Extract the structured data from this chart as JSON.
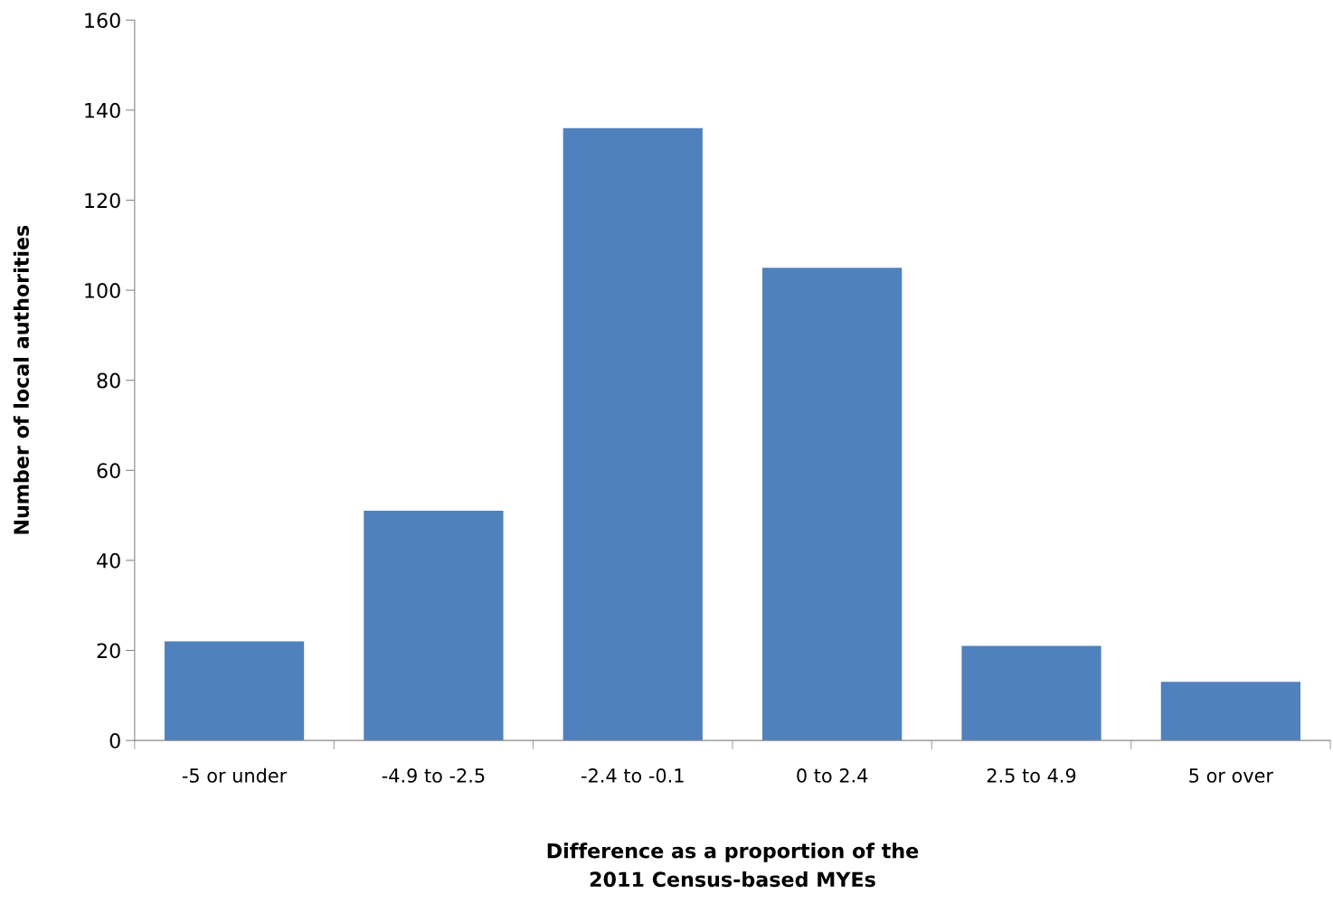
{
  "chart_data": {
    "type": "bar",
    "xlabel": "Difference as a proportion of the\n2011 Census-based MYEs",
    "ylabel": "Number of local authorities",
    "categories": [
      "-5 or under",
      "-4.9 to -2.5",
      "-2.4 to -0.1",
      "0 to 2.4",
      "2.5 to 4.9",
      "5 or over"
    ],
    "values": [
      22,
      51,
      136,
      105,
      21,
      13
    ],
    "color": "#4f81bd",
    "ylim": [
      0,
      160
    ],
    "yticks": [
      0,
      20,
      40,
      60,
      80,
      100,
      120,
      140,
      160
    ],
    "grid": false
  }
}
